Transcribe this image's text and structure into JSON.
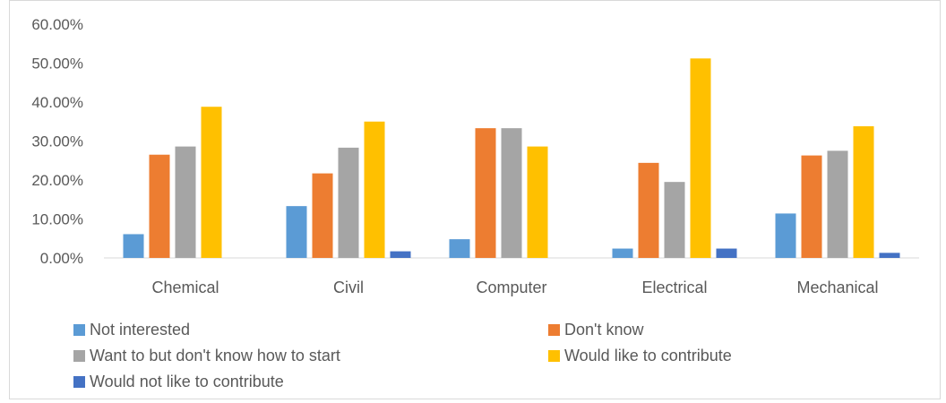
{
  "chart_data": {
    "type": "bar",
    "categories": [
      "Chemical",
      "Civil",
      "Computer",
      "Electrical",
      "Mechanical"
    ],
    "series": [
      {
        "name": "Not interested",
        "color": "#5b9bd5",
        "values": [
          6.1,
          13.3,
          4.8,
          2.4,
          11.4
        ]
      },
      {
        "name": "Don't know",
        "color": "#ed7d31",
        "values": [
          26.5,
          21.7,
          33.3,
          24.4,
          26.3
        ]
      },
      {
        "name": "Want to but don't know how to start",
        "color": "#a5a5a5",
        "values": [
          28.6,
          28.3,
          33.3,
          19.5,
          27.5
        ]
      },
      {
        "name": "Would like to contribute",
        "color": "#ffc000",
        "values": [
          38.8,
          35.0,
          28.6,
          51.2,
          33.8
        ]
      },
      {
        "name": "Would not like to contribute",
        "color": "#4472c4",
        "values": [
          0.0,
          1.7,
          0.0,
          2.4,
          1.3
        ]
      }
    ],
    "ylim": [
      0,
      60
    ],
    "yticks": [
      "0.00%",
      "10.00%",
      "20.00%",
      "30.00%",
      "40.00%",
      "50.00%",
      "60.00%"
    ],
    "ytick_values": [
      0,
      10,
      20,
      30,
      40,
      50,
      60
    ],
    "grid": false,
    "legend_position": "bottom",
    "title": "",
    "xlabel": "",
    "ylabel": ""
  }
}
